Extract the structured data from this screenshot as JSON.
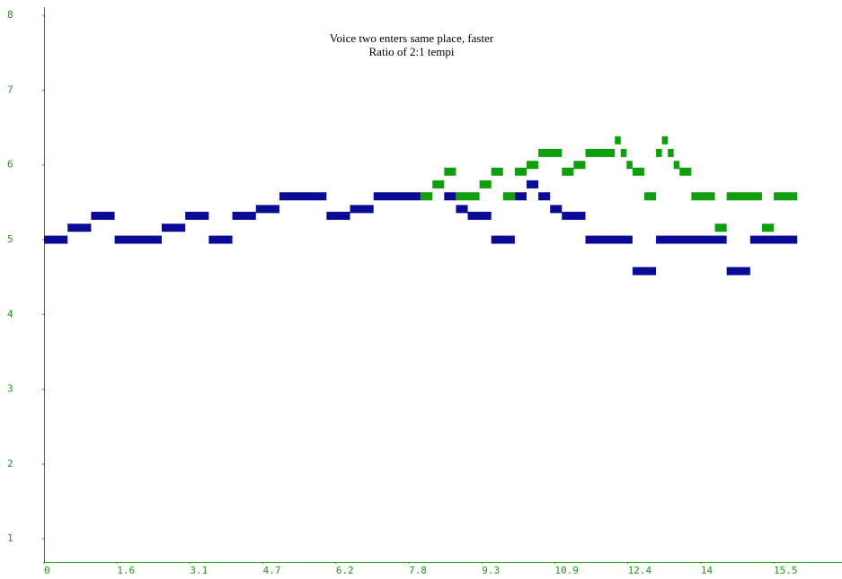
{
  "chart_data": {
    "type": "segments",
    "title": [
      "Voice two enters same place, faster",
      "Ratio of 2:1 tempi"
    ],
    "xlim": [
      0,
      16.95
    ],
    "ylim": [
      0.69,
      8.11
    ],
    "xticks": [
      0,
      {
        "value": 1.55,
        "label": "1.6"
      },
      3.1,
      {
        "value": 4.65,
        "label": "4.7"
      },
      6.2,
      {
        "value": 7.75,
        "label": "7.8"
      },
      9.3,
      {
        "value": 10.85,
        "label": "10.9"
      },
      12.4,
      {
        "value": 13.95,
        "label": "14"
      },
      15.5
    ],
    "yticks": [
      1,
      2,
      3,
      4,
      5,
      6,
      7,
      8
    ],
    "axis_color": "#1a9a1a",
    "series": [
      {
        "color": "#0a0a96",
        "start": [
          0,
          0.5,
          1.0,
          1.5,
          2.5,
          3.0,
          3.5,
          4.0,
          4.5,
          5.0,
          6.0,
          6.5,
          7.0,
          8.5,
          8.75,
          9.0,
          9.5,
          10.0,
          10.25,
          10.5,
          10.75,
          11.0,
          11.5,
          12.5,
          13.0,
          14.5,
          15.0
        ],
        "end": [
          0.5,
          1.0,
          1.5,
          2.5,
          3.0,
          3.5,
          4.0,
          4.5,
          5.0,
          6.0,
          6.5,
          7.0,
          8.0,
          8.75,
          9.0,
          9.5,
          10.0,
          10.25,
          10.5,
          10.75,
          11.0,
          11.5,
          12.5,
          13.0,
          14.5,
          15.0,
          16.0
        ],
        "values": [
          5.0,
          5.16,
          5.32,
          5.0,
          5.16,
          5.32,
          5.0,
          5.32,
          5.41,
          5.58,
          5.32,
          5.41,
          5.58,
          5.58,
          5.41,
          5.32,
          5.0,
          5.58,
          5.74,
          5.58,
          5.41,
          5.32,
          5.0,
          4.58,
          5.0,
          4.58,
          5.0
        ]
      },
      {
        "color": "#0e9e0e",
        "start": [
          8.0,
          8.25,
          8.5,
          8.75,
          9.25,
          9.5,
          9.75,
          10.0,
          10.25,
          10.5,
          11.0,
          11.25,
          11.5,
          12.125,
          12.25,
          12.375,
          12.5,
          12.75,
          13.0,
          13.125,
          13.25,
          13.375,
          13.5,
          13.75,
          14.25,
          14.5,
          15.25,
          15.5
        ],
        "end": [
          8.25,
          8.5,
          8.75,
          9.25,
          9.5,
          9.75,
          10.0,
          10.25,
          10.5,
          11.0,
          11.25,
          11.5,
          12.125,
          12.25,
          12.375,
          12.5,
          12.75,
          13.0,
          13.125,
          13.25,
          13.375,
          13.5,
          13.75,
          14.25,
          14.5,
          15.25,
          15.5,
          16.0
        ],
        "values": [
          5.58,
          5.74,
          5.91,
          5.58,
          5.74,
          5.91,
          5.58,
          5.91,
          6.0,
          6.16,
          5.91,
          6.0,
          6.16,
          6.33,
          6.16,
          6.0,
          5.91,
          5.58,
          6.16,
          6.33,
          6.16,
          6.0,
          5.91,
          5.58,
          5.16,
          5.58,
          5.16,
          5.58
        ]
      }
    ]
  }
}
